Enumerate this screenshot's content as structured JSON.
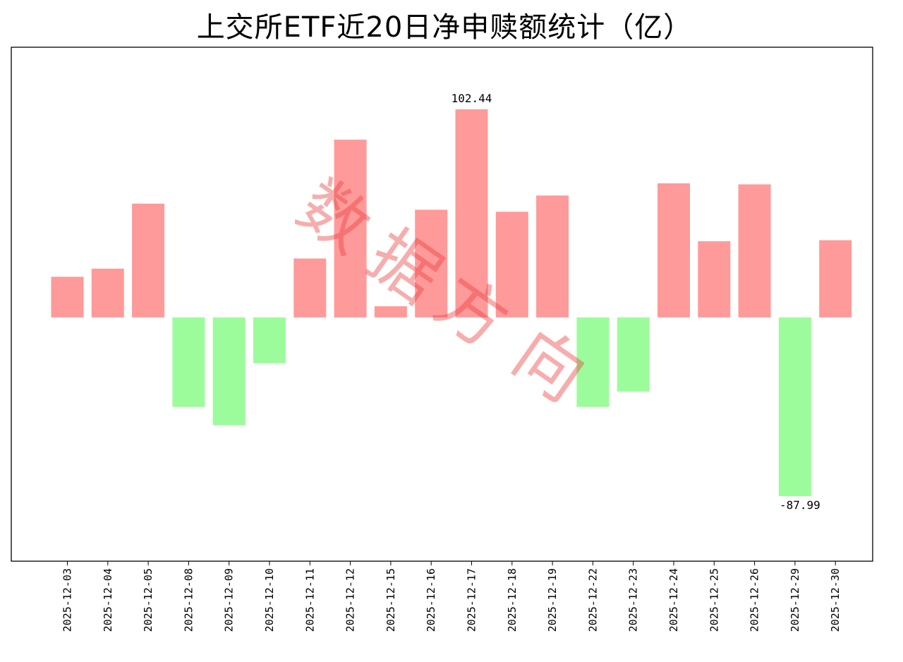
{
  "chart_data": {
    "type": "bar",
    "title": "上交所ETF近20日净申赎额统计（亿）",
    "xlabel": "",
    "ylabel": "",
    "categories": [
      "2025-12-03",
      "2025-12-04",
      "2025-12-05",
      "2025-12-08",
      "2025-12-09",
      "2025-12-10",
      "2025-12-11",
      "2025-12-12",
      "2025-12-15",
      "2025-12-16",
      "2025-12-17",
      "2025-12-18",
      "2025-12-19",
      "2025-12-22",
      "2025-12-23",
      "2025-12-24",
      "2025-12-25",
      "2025-12-26",
      "2025-12-29",
      "2025-12-30"
    ],
    "values": [
      20,
      24,
      56,
      -44,
      -53,
      -22.5,
      29,
      87.5,
      5.5,
      53,
      102.44,
      52,
      60,
      -44,
      -36.5,
      66,
      37.5,
      65.5,
      -87.99,
      38
    ],
    "data_labels": [
      {
        "category": "2025-12-17",
        "text": "102.44"
      },
      {
        "category": "2025-12-29",
        "text": "-87.99"
      }
    ],
    "ylim": [
      -120,
      133
    ],
    "yticks_visible": false,
    "grid": false,
    "legend": "none",
    "colors": {
      "positive": "#ff9a9a",
      "negative": "#9cfc9c",
      "axis": "#000000"
    }
  },
  "watermark": {
    "text": "数据方向"
  }
}
